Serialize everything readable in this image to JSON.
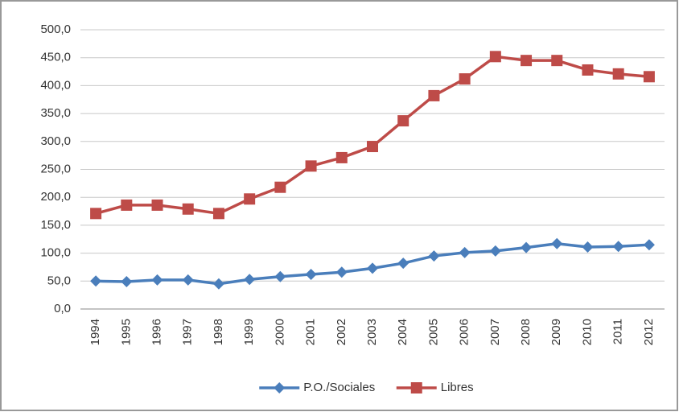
{
  "chart_data": {
    "type": "line",
    "categories": [
      "1994",
      "1995",
      "1996",
      "1997",
      "1998",
      "1999",
      "2000",
      "2001",
      "2002",
      "2003",
      "2004",
      "2005",
      "2006",
      "2007",
      "2008",
      "2009",
      "2010",
      "2011",
      "2012"
    ],
    "series": [
      {
        "name": "P.O./Sociales",
        "color": "#4a7ebb",
        "marker": "diamond",
        "values": [
          50,
          49,
          52,
          52,
          45,
          53,
          58,
          62,
          66,
          73,
          82,
          95,
          101,
          104,
          110,
          117,
          111,
          112,
          115
        ]
      },
      {
        "name": "Libres",
        "color": "#be4b48",
        "marker": "square",
        "values": [
          171,
          186,
          186,
          179,
          171,
          197,
          218,
          256,
          271,
          291,
          337,
          382,
          412,
          452,
          445,
          445,
          428,
          421,
          416
        ]
      }
    ],
    "ylim": [
      0,
      500
    ],
    "yticks": [
      {
        "value": 0,
        "label": "0,0"
      },
      {
        "value": 50,
        "label": "50,0"
      },
      {
        "value": 100,
        "label": "100,0"
      },
      {
        "value": 150,
        "label": "150,0"
      },
      {
        "value": 200,
        "label": "200,0"
      },
      {
        "value": 250,
        "label": "250,0"
      },
      {
        "value": 300,
        "label": "300,0"
      },
      {
        "value": 350,
        "label": "350,0"
      },
      {
        "value": 400,
        "label": "400,0"
      },
      {
        "value": 450,
        "label": "450,0"
      },
      {
        "value": 500,
        "label": "500,0"
      }
    ],
    "grid": true,
    "legend": "bottom"
  }
}
